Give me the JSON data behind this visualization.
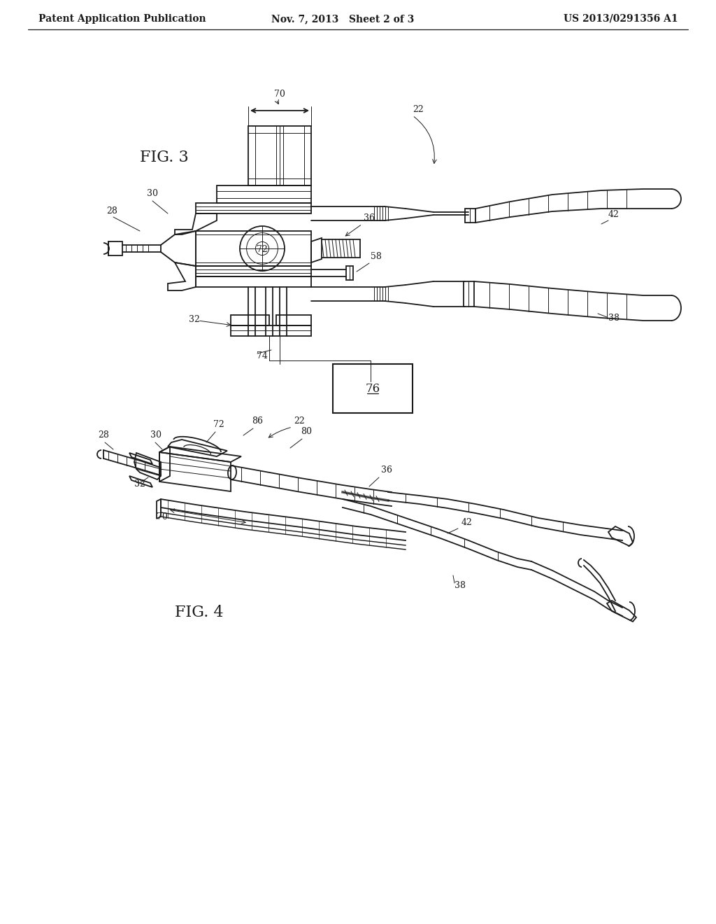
{
  "bg_color": "#ffffff",
  "header_left": "Patent Application Publication",
  "header_center": "Nov. 7, 2013   Sheet 2 of 3",
  "header_right": "US 2013/0291356 A1",
  "lc": "#1a1a1a",
  "lw": 1.3,
  "tlw": 0.7
}
